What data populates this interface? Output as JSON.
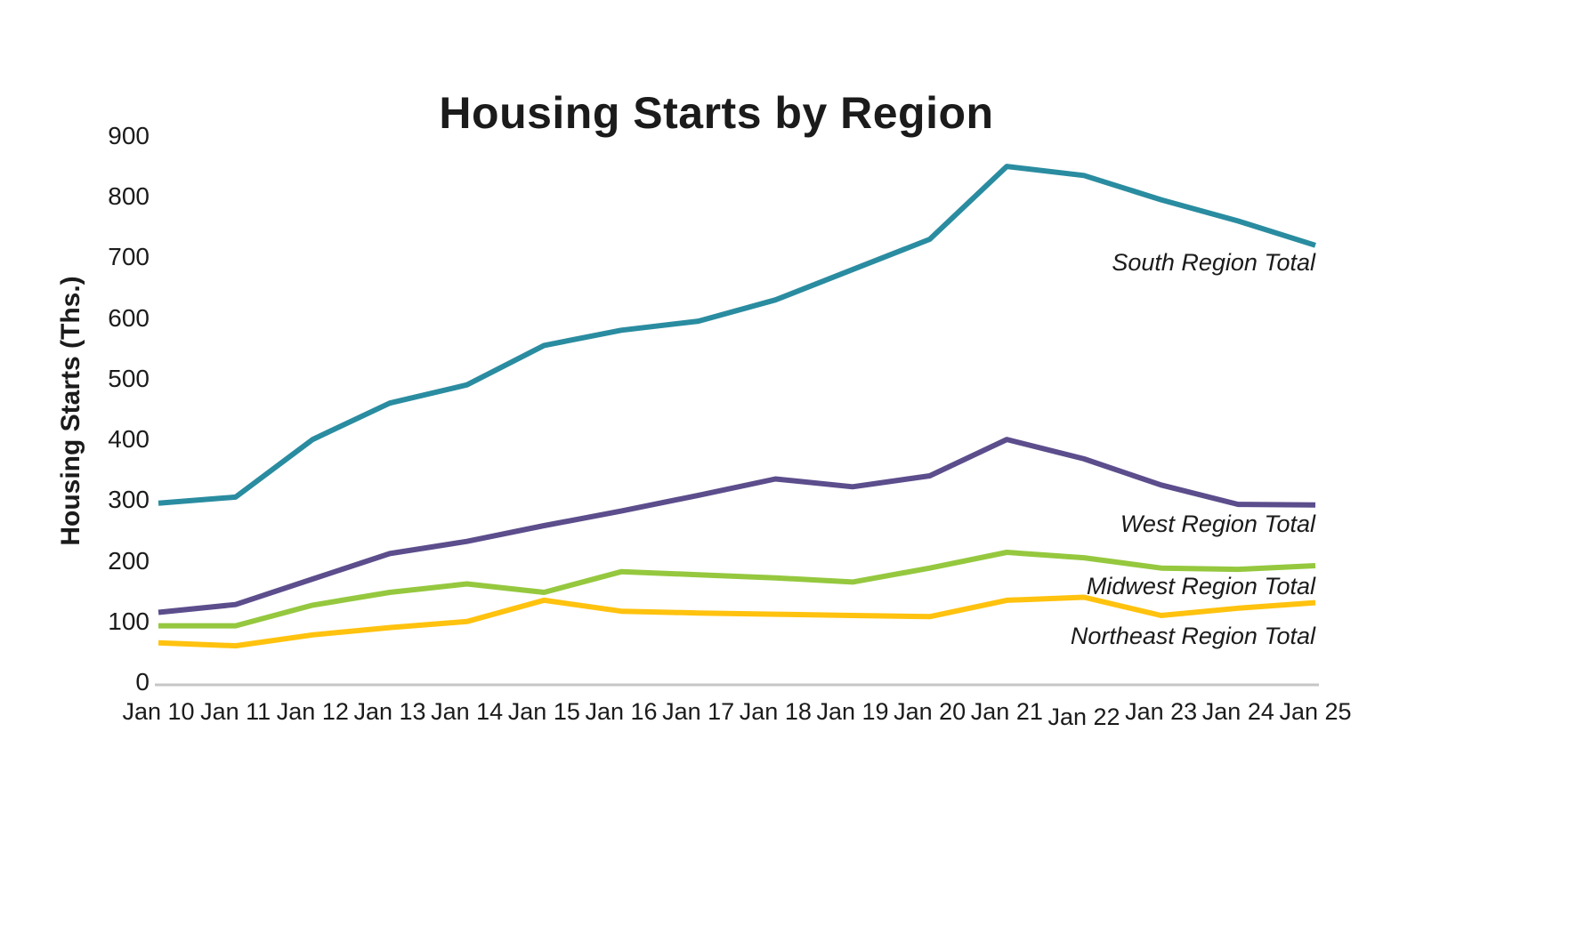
{
  "chart_data": {
    "type": "line",
    "title": "Housing Starts by Region",
    "ylabel": "Housing Starts (Ths.)",
    "xlabel": "",
    "ylim": [
      0,
      900
    ],
    "ytick_step": 100,
    "grid": false,
    "axis_line_color": "#c6c6c6",
    "text_color": "#1b1b1b",
    "legend_position": "inline-right-labels",
    "categories": [
      "Jan 10",
      "Jan 11",
      "Jan 12",
      "Jan 13",
      "Jan 14",
      "Jan 15",
      "Jan 16",
      "Jan 17",
      "Jan 18",
      "Jan 19",
      "Jan 20",
      "Jan 21",
      "Jan 22",
      "Jan 23",
      "Jan 24",
      "Jan 25"
    ],
    "series": [
      {
        "name": "South Region Total",
        "color": "#2A8CA0",
        "label_anchor_value": 690,
        "values": [
          295,
          305,
          400,
          460,
          490,
          555,
          580,
          595,
          630,
          680,
          730,
          850,
          835,
          795,
          760,
          720
        ]
      },
      {
        "name": "West Region Total",
        "color": "#5C4D8C",
        "label_anchor_value": 260,
        "values": [
          115,
          128,
          170,
          212,
          232,
          258,
          282,
          308,
          335,
          322,
          340,
          400,
          368,
          325,
          293,
          292
        ]
      },
      {
        "name": "Midwest Region Total",
        "color": "#95C83E",
        "label_anchor_value": 157,
        "values": [
          93,
          93,
          127,
          148,
          162,
          148,
          182,
          177,
          172,
          165,
          188,
          214,
          205,
          188,
          186,
          192
        ]
      },
      {
        "name": "Northeast Region Total",
        "color": "#FFC20E",
        "label_anchor_value": 75,
        "values": [
          65,
          60,
          78,
          90,
          100,
          135,
          117,
          114,
          112,
          110,
          108,
          135,
          140,
          110,
          122,
          131
        ]
      }
    ]
  }
}
